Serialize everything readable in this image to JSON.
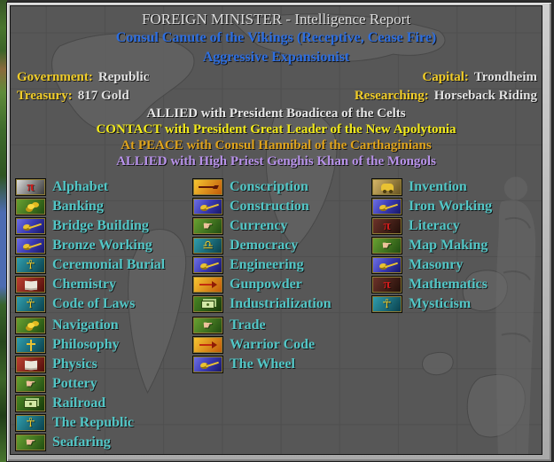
{
  "header": {
    "title": "FOREIGN MINISTER - Intelligence Report",
    "ruler_line": "Consul Canute of the Vikings (Receptive, Cease Fire)",
    "attitude_line": "Aggressive Expansionist"
  },
  "stats": {
    "government_label": "Government:",
    "government_value": "Republic",
    "treasury_label": "Treasury:",
    "treasury_value": "817 Gold",
    "capital_label": "Capital:",
    "capital_value": "Trondheim",
    "researching_label": "Researching:",
    "researching_value": "Horseback Riding"
  },
  "relations": [
    {
      "text": "ALLIED with President Boadicea of the Celts",
      "color": "#e6e6e6"
    },
    {
      "text": "CONTACT with President Great Leader of the New Apolytonia",
      "color": "#f2ea1c"
    },
    {
      "text": "At PEACE with Consul Hannibal of the Carthaginians",
      "color": "#dfa31c"
    },
    {
      "text": "ALLIED with High Priest Genghis Khan of the Mongols",
      "color": "#b892ea"
    }
  ],
  "technologies": {
    "text_color": "#52c6c6",
    "gap_after": 7,
    "glyphs": {
      "pi": "π",
      "ankh": "☥",
      "hand": "☛",
      "scales": "♎"
    },
    "columns": [
      {
        "items": [
          {
            "label": "Alphabet",
            "icon": "pi",
            "palette": "silver"
          },
          {
            "label": "Banking",
            "icon": "coins",
            "palette": "green"
          },
          {
            "label": "Bridge Building",
            "icon": "tools",
            "palette": "blue"
          },
          {
            "label": "Bronze Working",
            "icon": "tools",
            "palette": "blue"
          },
          {
            "label": "Ceremonial Burial",
            "icon": "ankh",
            "palette": "teal"
          },
          {
            "label": "Chemistry",
            "icon": "book",
            "palette": "red"
          },
          {
            "label": "Code of Laws",
            "icon": "ankh",
            "palette": "teal"
          },
          {
            "label": "Navigation",
            "icon": "coins",
            "palette": "green"
          },
          {
            "label": "Philosophy",
            "icon": "cross",
            "palette": "teal"
          },
          {
            "label": "Physics",
            "icon": "book",
            "palette": "red"
          },
          {
            "label": "Pottery",
            "icon": "hand",
            "palette": "green"
          },
          {
            "label": "Railroad",
            "icon": "banknote",
            "palette": "dgreen"
          },
          {
            "label": "The Republic",
            "icon": "ankh",
            "palette": "teal"
          },
          {
            "label": "Seafaring",
            "icon": "hand",
            "palette": "green"
          }
        ]
      },
      {
        "items": [
          {
            "label": "Conscription",
            "icon": "rifle",
            "palette": "orange"
          },
          {
            "label": "Construction",
            "icon": "tools",
            "palette": "blue"
          },
          {
            "label": "Currency",
            "icon": "hand",
            "palette": "green"
          },
          {
            "label": "Democracy",
            "icon": "scales",
            "palette": "teal"
          },
          {
            "label": "Engineering",
            "icon": "tools",
            "palette": "blue"
          },
          {
            "label": "Gunpowder",
            "icon": "arrow",
            "palette": "orange"
          },
          {
            "label": "Industrialization",
            "icon": "banknote",
            "palette": "dgreen"
          },
          {
            "label": "Trade",
            "icon": "hand",
            "palette": "green"
          },
          {
            "label": "Warrior Code",
            "icon": "arrow",
            "palette": "orange"
          },
          {
            "label": "The Wheel",
            "icon": "tools",
            "palette": "blue"
          }
        ]
      },
      {
        "items": [
          {
            "label": "Invention",
            "icon": "contraption",
            "palette": "tan"
          },
          {
            "label": "Iron Working",
            "icon": "tools",
            "palette": "blue"
          },
          {
            "label": "Literacy",
            "icon": "pi",
            "palette": "dark"
          },
          {
            "label": "Map Making",
            "icon": "hand",
            "palette": "green"
          },
          {
            "label": "Masonry",
            "icon": "tools",
            "palette": "blue"
          },
          {
            "label": "Mathematics",
            "icon": "pi",
            "palette": "dark"
          },
          {
            "label": "Mysticism",
            "icon": "ankh",
            "palette": "teal"
          }
        ]
      }
    ]
  },
  "colors": {
    "header_blue": "#2d6ee0",
    "label_yellow": "#f0cc28",
    "value_white": "#e2e2e2",
    "tech_cyan": "#52c6c6",
    "dialog_face": "#c0c0c0",
    "interior_gray": "#575757"
  }
}
